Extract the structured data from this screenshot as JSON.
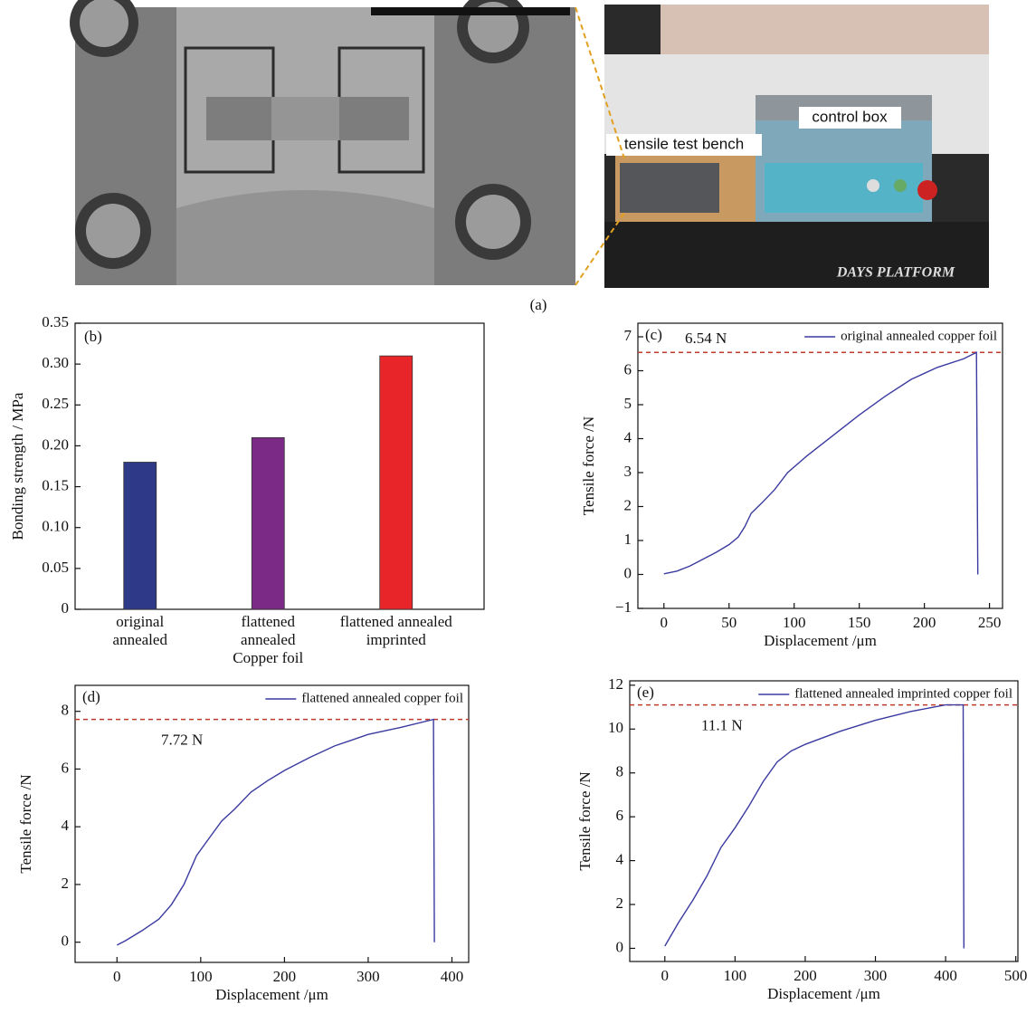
{
  "figure": {
    "panel_a": {
      "label": "(a)",
      "annotations": [
        "tensile test bench",
        "control box"
      ],
      "sign": "DAYS PLATFORM"
    }
  },
  "chart_data": [
    {
      "type": "bar",
      "title": "(b)",
      "y_label": "Bonding strength / MPa",
      "categories": [
        [
          "original",
          "annealed"
        ],
        [
          "flattened",
          "annealed",
          "Copper foil"
        ],
        [
          "flattened annealed",
          "imprinted"
        ]
      ],
      "values": [
        0.18,
        0.21,
        0.31
      ],
      "colors": [
        "#2e3a87",
        "#7b2a86",
        "#e8262a"
      ],
      "ylim": [
        0,
        0.35
      ],
      "yticks": [
        0,
        0.05,
        {
          "value": 0.1,
          "label": "0.10"
        },
        0.15,
        {
          "value": 0.2,
          "label": "0.20"
        },
        0.25,
        {
          "value": 0.3,
          "label": "0.30"
        },
        0.35
      ],
      "grid": false
    },
    {
      "type": "line",
      "title": "(c)",
      "x_label": "Displacement /μm",
      "y_label": "Tensile force /N",
      "x": [
        0,
        10,
        20,
        30,
        40,
        50,
        57,
        62,
        67,
        75,
        85,
        95,
        110,
        130,
        150,
        170,
        190,
        210,
        230,
        240,
        241
      ],
      "series": [
        {
          "name": "original annealed copper foil",
          "color": "#3a3aa0",
          "values": [
            0.02,
            0.1,
            0.25,
            0.45,
            0.65,
            0.88,
            1.1,
            1.4,
            1.8,
            2.1,
            2.5,
            3.0,
            3.5,
            4.1,
            4.7,
            5.25,
            5.75,
            6.1,
            6.35,
            6.54,
            0
          ]
        }
      ],
      "reference_line": {
        "value": 6.54,
        "label": "6.54 N",
        "color": "#c0392b"
      },
      "xlim": [
        -20,
        260
      ],
      "xticks": [
        0,
        50,
        100,
        150,
        200,
        250
      ],
      "ylim": [
        -1,
        7.4
      ],
      "yticks": [
        {
          "value": -1,
          "label": "−1"
        },
        0,
        1,
        2,
        3,
        4,
        5,
        6,
        7
      ],
      "legend": "upper right",
      "grid": false
    },
    {
      "type": "line",
      "title": "(d)",
      "x_label": "Displacement /μm",
      "y_label": "Tensile force /N",
      "x": [
        0,
        10,
        30,
        50,
        65,
        80,
        95,
        110,
        125,
        140,
        160,
        180,
        200,
        230,
        260,
        300,
        340,
        378,
        379
      ],
      "series": [
        {
          "name": "flattened annealed copper foil",
          "color": "#3a3aa0",
          "values": [
            -0.1,
            0.05,
            0.4,
            0.8,
            1.3,
            2.0,
            3.0,
            3.6,
            4.2,
            4.6,
            5.2,
            5.6,
            5.95,
            6.4,
            6.8,
            7.2,
            7.45,
            7.72,
            0
          ]
        }
      ],
      "reference_line": {
        "value": 7.72,
        "label": "7.72 N",
        "color": "#c0392b"
      },
      "xlim": [
        -50,
        420
      ],
      "xticks": [
        0,
        100,
        200,
        300,
        400
      ],
      "ylim": [
        -0.7,
        8.9
      ],
      "yticks": [
        0,
        2,
        4,
        6,
        8
      ],
      "legend": "upper right",
      "grid": false
    },
    {
      "type": "line",
      "title": "(e)",
      "x_label": "Displacement /μm",
      "y_label": "Tensile force /N",
      "x": [
        0,
        20,
        40,
        60,
        80,
        100,
        120,
        140,
        160,
        180,
        200,
        250,
        300,
        350,
        400,
        425,
        426
      ],
      "series": [
        {
          "name": "flattened annealed imprinted copper foil",
          "color": "#3a3aa0",
          "values": [
            0.1,
            1.2,
            2.2,
            3.3,
            4.6,
            5.5,
            6.5,
            7.6,
            8.5,
            9.0,
            9.3,
            9.9,
            10.4,
            10.8,
            11.1,
            11.1,
            0
          ]
        }
      ],
      "reference_line": {
        "value": 11.1,
        "label": "11.1 N",
        "color": "#c0392b"
      },
      "xlim": [
        -50,
        503
      ],
      "xticks": [
        0,
        100,
        200,
        300,
        400,
        500
      ],
      "ylim": [
        -0.6,
        12.2
      ],
      "yticks": [
        0,
        2,
        4,
        6,
        8,
        10,
        12
      ],
      "legend": "upper right",
      "grid": false
    }
  ]
}
